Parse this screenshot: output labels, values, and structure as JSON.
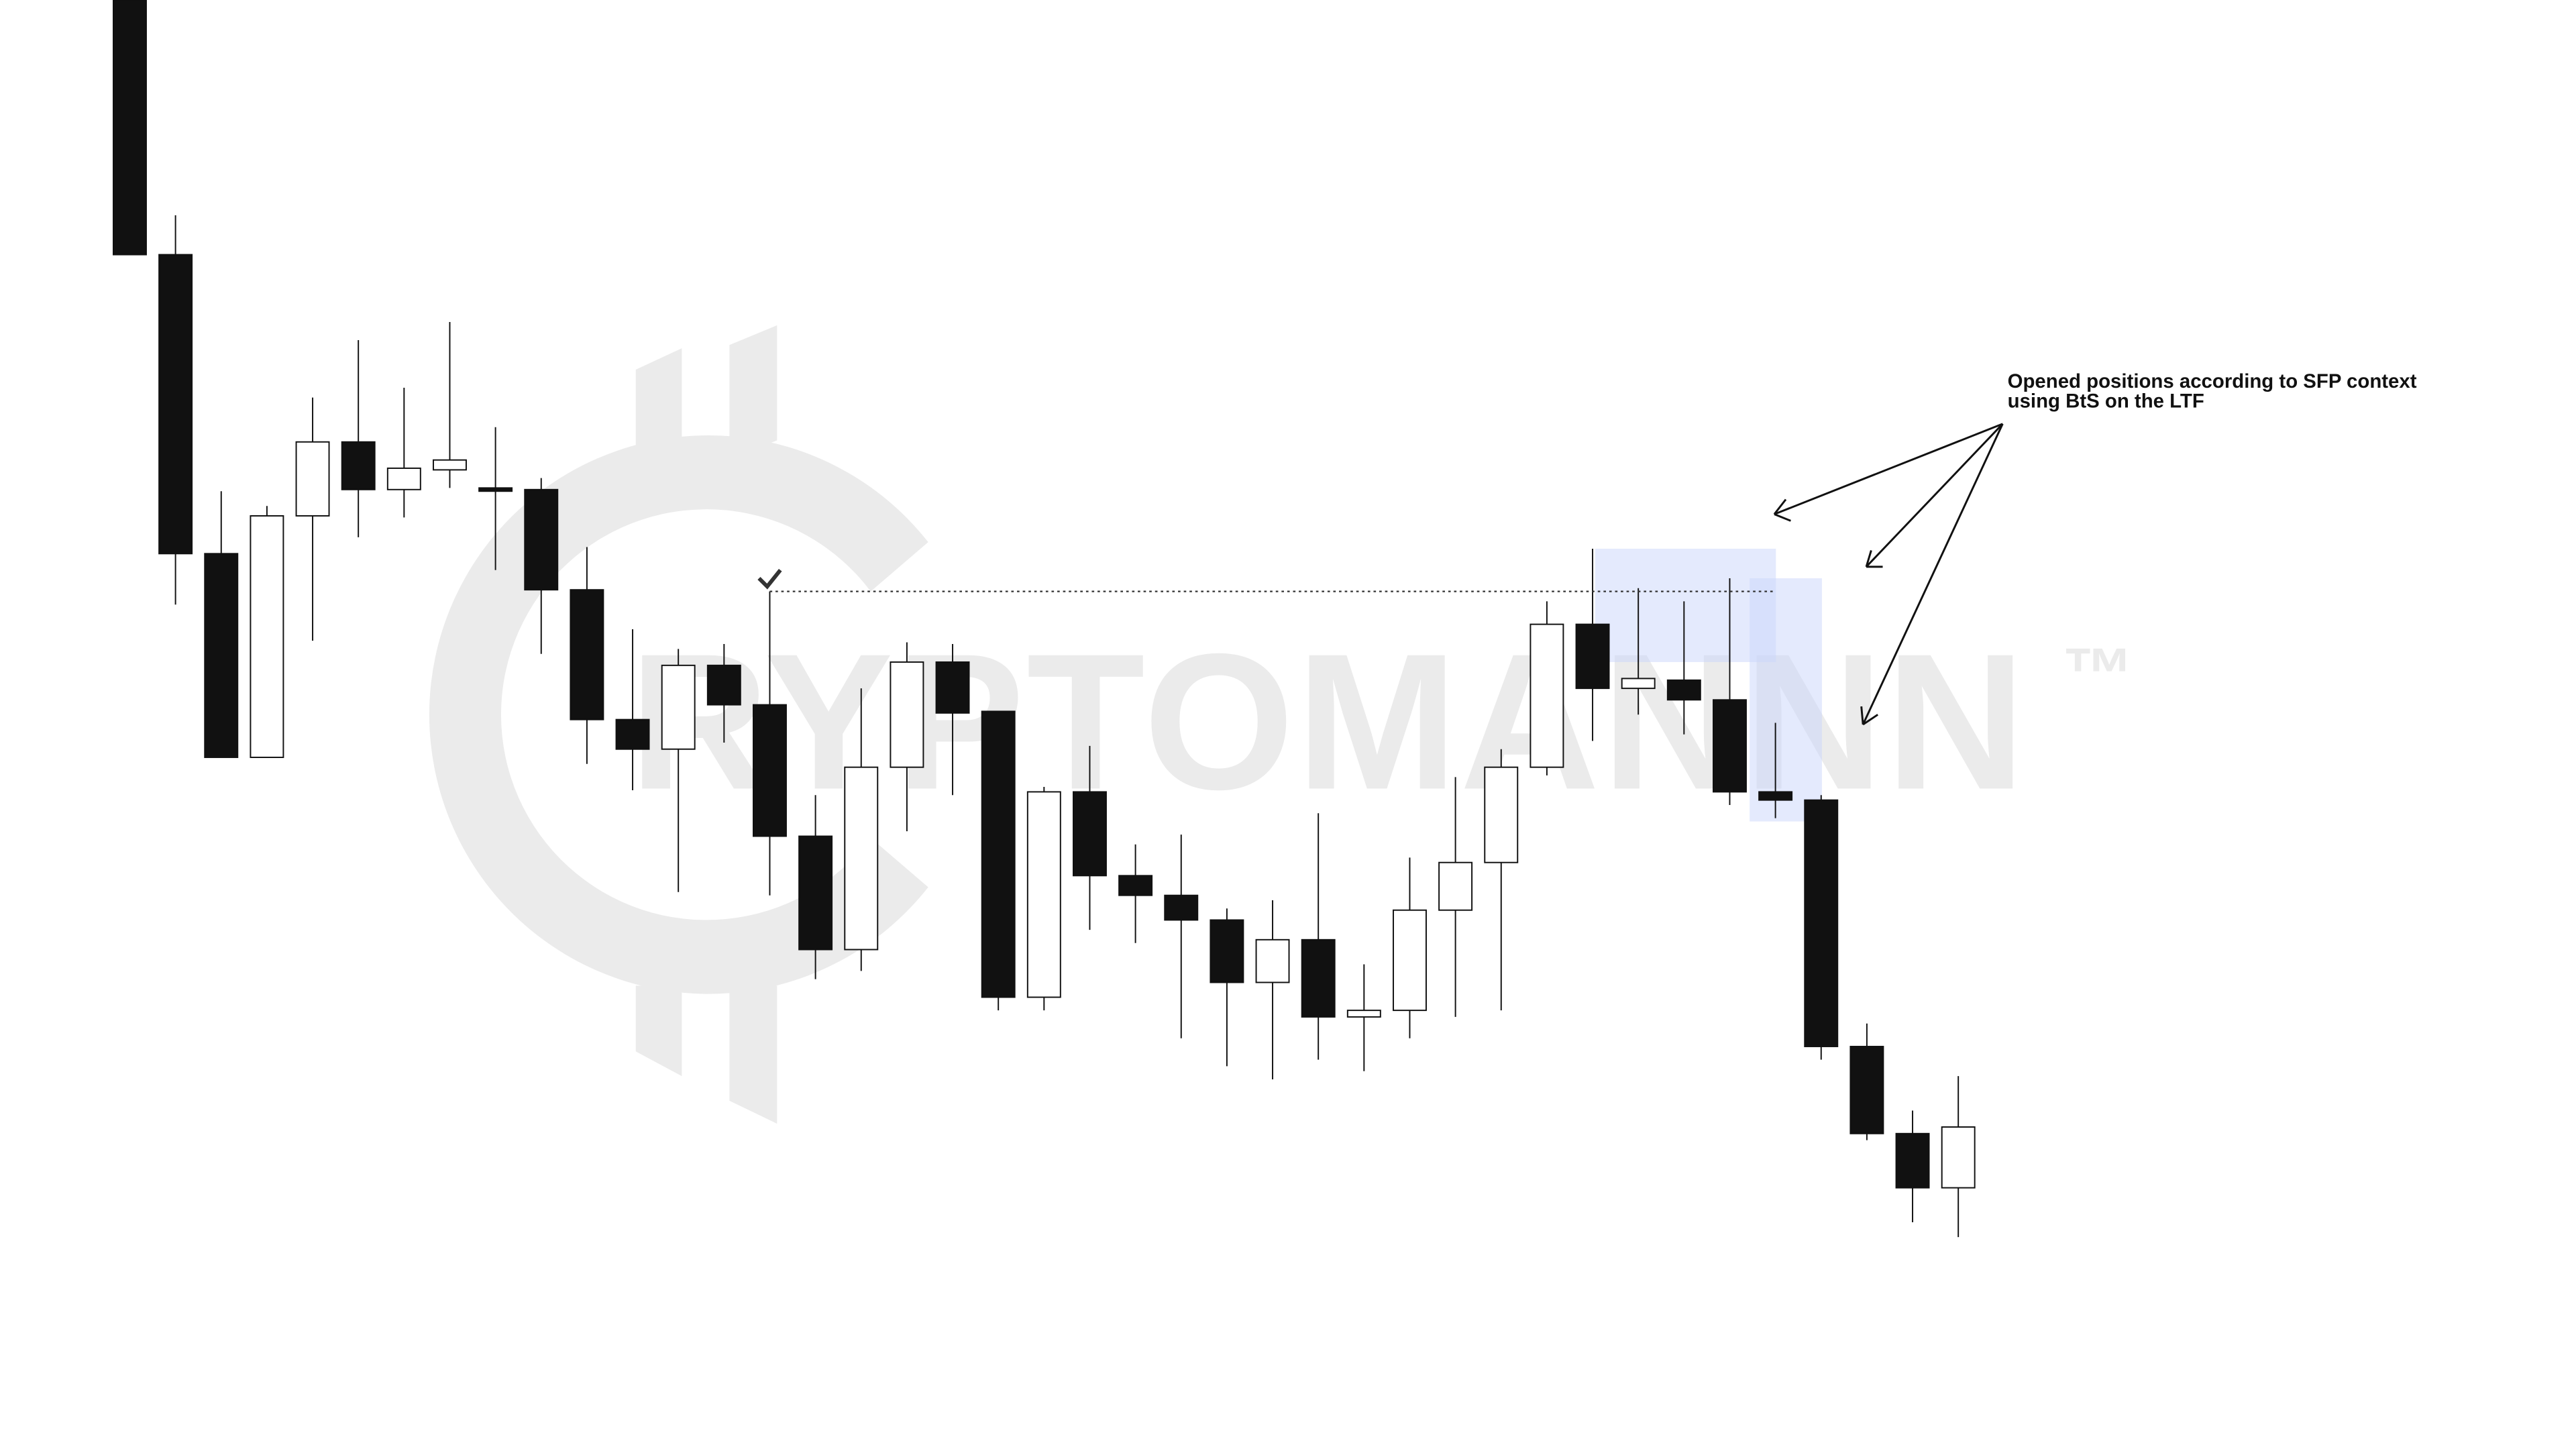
{
  "chart_data": {
    "type": "candlestick",
    "watermark": "RYPTOMANNN",
    "watermark_mark": "™",
    "annotation": [
      "Opened positions according to SFP context",
      "using BtS on the LTF"
    ],
    "open": [
      882,
      727,
      545,
      421,
      568,
      613,
      584,
      596,
      585,
      584,
      523,
      444,
      426,
      477,
      453,
      373,
      304,
      415,
      479,
      449,
      275,
      400,
      349,
      337,
      322,
      284,
      310,
      263,
      267,
      328,
      357,
      415,
      502,
      463,
      468,
      456,
      400,
      395,
      245,
      192,
      159
    ],
    "high": [
      882,
      751,
      583,
      574,
      640,
      675,
      646,
      686,
      622,
      591,
      549,
      499,
      487,
      490,
      522,
      398,
      463,
      491,
      490,
      449,
      403,
      428,
      368,
      374,
      329,
      334,
      387,
      295,
      360,
      409,
      426,
      516,
      548,
      524,
      516,
      530,
      442,
      398,
      259,
      206,
      227
    ],
    "low": [
      727,
      514,
      421,
      421,
      492,
      555,
      567,
      585,
      535,
      484,
      417,
      401,
      339,
      430,
      337,
      286,
      291,
      376,
      398,
      267,
      267,
      316,
      308,
      250,
      233,
      225,
      237,
      230,
      250,
      263,
      267,
      410,
      431,
      447,
      435,
      392,
      384,
      237,
      188,
      138,
      129
    ],
    "close": [
      727,
      545,
      421,
      568,
      613,
      584,
      597,
      602,
      583,
      523,
      444,
      426,
      477,
      453,
      373,
      304,
      415,
      479,
      448,
      275,
      400,
      349,
      337,
      322,
      284,
      310,
      263,
      267,
      328,
      357,
      415,
      502,
      463,
      469,
      456,
      400,
      395,
      245,
      192,
      159,
      196
    ],
    "ylim": [
      0,
      882
    ],
    "up_color": "#ffffff",
    "down_color": "#111111"
  }
}
